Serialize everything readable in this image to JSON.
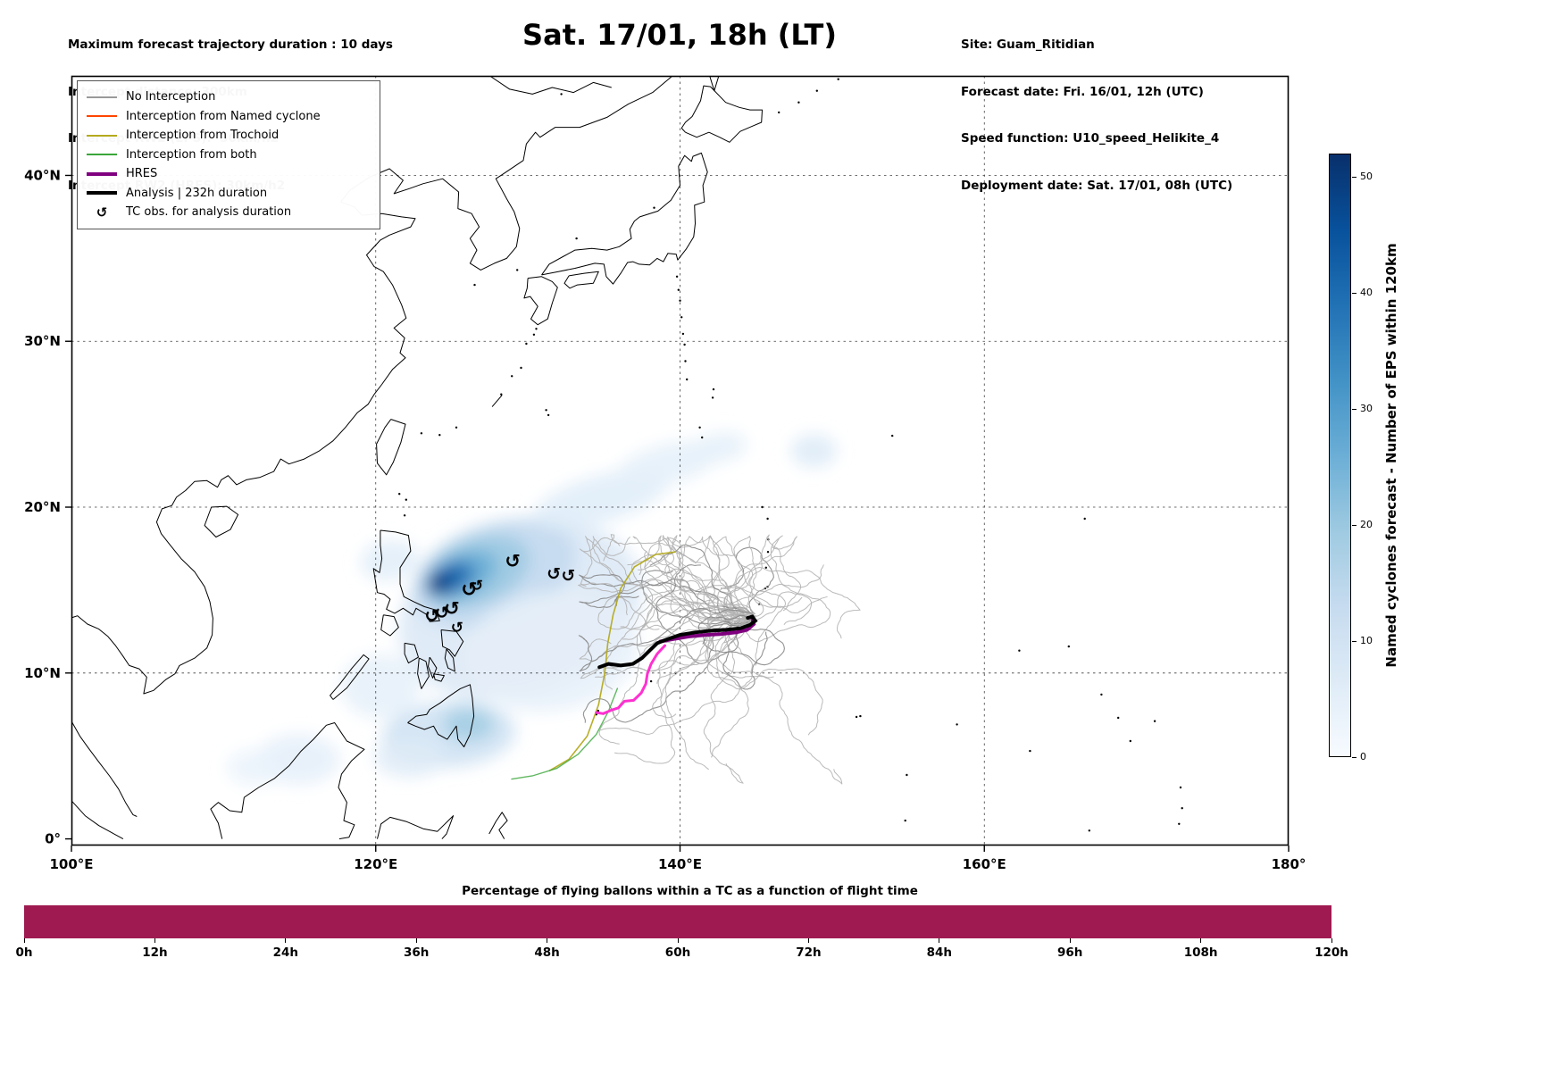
{
  "header": {
    "top_left_lines": [
      "Maximum forecast trajectory duration : 10 days",
      "Intercept distance: 300km",
      "Intercept RW2 (EPS):  30km/h2",
      "Intercept RW2 (HRES): 30km/h2"
    ],
    "title": "Sat. 17/01, 18h (LT)",
    "top_right_lines": [
      "Site: Guam_Ritidian",
      "Forecast date: Fri. 16/01, 12h (UTC)",
      "Speed function: U10_speed_Helikite_4",
      "Deployment date: Sat. 17/01, 08h (UTC)"
    ]
  },
  "legend": {
    "items": [
      {
        "label": "No Interception",
        "color": "#999999",
        "lw": 2,
        "type": "line"
      },
      {
        "label": "Interception from Named cyclone",
        "color": "#ff4500",
        "lw": 2,
        "type": "line"
      },
      {
        "label": "Interception from Trochoid",
        "color": "#b4aa1e",
        "lw": 2,
        "type": "line"
      },
      {
        "label": "Interception from both",
        "color": "#3aa63a",
        "lw": 2,
        "type": "line"
      },
      {
        "label": "HRES",
        "color": "#800080",
        "lw": 4,
        "type": "line"
      },
      {
        "label": "Analysis | 232h duration",
        "color": "#000000",
        "lw": 4,
        "type": "line"
      },
      {
        "label": "TC obs. for analysis duration",
        "color": "#000000",
        "symbol": "↺",
        "type": "symbol"
      }
    ]
  },
  "chart_data": [
    {
      "type": "heatmap",
      "title": "Sat. 17/01, 18h (LT)",
      "xlim_lon": [
        100,
        180
      ],
      "ylim_lat": [
        -0.4,
        46
      ],
      "x_ticks": [
        {
          "label": "100°E",
          "lon": 100
        },
        {
          "label": "120°E",
          "lon": 120
        },
        {
          "label": "140°E",
          "lon": 140
        },
        {
          "label": "160°E",
          "lon": 160
        },
        {
          "label": "180°",
          "lon": 180
        }
      ],
      "y_ticks": [
        {
          "label": "0°",
          "lat": 0
        },
        {
          "label": "10°N",
          "lat": 10
        },
        {
          "label": "20°N",
          "lat": 20
        },
        {
          "label": "30°N",
          "lat": 30
        },
        {
          "label": "40°N",
          "lat": 40
        }
      ],
      "grid": "dashed",
      "colorbar": {
        "label": "Named cyclones forecast - Number of EPS within 120km",
        "vmin": 0,
        "vmax": 52,
        "ticks": [
          0,
          10,
          20,
          30,
          40,
          50
        ],
        "cmap_stops": [
          "#f7fbff",
          "#deebf7",
          "#c6dbef",
          "#9ecae1",
          "#6baed6",
          "#4292c6",
          "#2171b5",
          "#08519c",
          "#08306b"
        ]
      },
      "density_peak": {
        "lon": 124.1,
        "lat": 15.4,
        "approx_value": 52
      },
      "density_blobs": [
        [
          129.5,
          13.8,
          8.2,
          5.2,
          -18,
          "#dce9f6",
          0.9
        ],
        [
          127.8,
          16.0,
          5.6,
          3.0,
          -20,
          "#c6dbef",
          0.95
        ],
        [
          126.6,
          16.1,
          3.7,
          2.0,
          -22,
          "#9ecae1",
          0.95
        ],
        [
          125.6,
          15.9,
          2.5,
          1.3,
          -24,
          "#6baed6",
          0.95
        ],
        [
          124.9,
          15.7,
          1.7,
          0.9,
          -25,
          "#2171b5",
          0.95
        ],
        [
          124.4,
          15.5,
          1.05,
          0.6,
          -25,
          "#08519c",
          1
        ],
        [
          124.05,
          15.35,
          0.6,
          0.38,
          -25,
          "#08306b",
          1
        ],
        [
          131.5,
          11.3,
          5.8,
          3.6,
          -8,
          "#e6f0f9",
          0.85
        ],
        [
          134.8,
          20.5,
          4.6,
          1.4,
          -16,
          "#e0edf8",
          0.9
        ],
        [
          139.2,
          22.6,
          3.4,
          1.2,
          -14,
          "#e6f1fa",
          0.9
        ],
        [
          142.6,
          23.6,
          1.8,
          0.9,
          -10,
          "#e6f1fa",
          0.9
        ],
        [
          148.8,
          23.4,
          1.5,
          1.0,
          0,
          "#dfecf8",
          0.95
        ],
        [
          120.9,
          16.8,
          1.9,
          1.2,
          -10,
          "#e0edf8",
          0.85
        ],
        [
          120.3,
          9.2,
          2.6,
          1.9,
          0,
          "#e4eff9",
          0.8
        ],
        [
          124.8,
          6.3,
          4.4,
          2.0,
          -4,
          "#cfe2f3",
          0.9
        ],
        [
          126.1,
          6.9,
          1.7,
          1.0,
          0,
          "#9ecae1",
          0.8
        ],
        [
          122.2,
          4.9,
          2.3,
          1.2,
          0,
          "#deebf7",
          0.85
        ],
        [
          114.9,
          4.8,
          2.7,
          1.5,
          0,
          "#e4eff9",
          0.85
        ],
        [
          112.1,
          4.3,
          1.9,
          1.1,
          0,
          "#eaf3fb",
          0.85
        ]
      ],
      "analysis_color": "#000000",
      "analysis_track_lonlat": [
        [
          134.7,
          10.35
        ],
        [
          135.3,
          10.55
        ],
        [
          136.1,
          10.45
        ],
        [
          136.9,
          10.55
        ],
        [
          137.5,
          10.9
        ],
        [
          138.0,
          11.35
        ],
        [
          138.5,
          11.8
        ],
        [
          139.2,
          12.05
        ],
        [
          140.0,
          12.3
        ],
        [
          141.0,
          12.45
        ],
        [
          142.0,
          12.55
        ],
        [
          143.0,
          12.6
        ],
        [
          144.0,
          12.7
        ],
        [
          144.6,
          12.9
        ],
        [
          144.95,
          13.15
        ],
        [
          144.75,
          13.4
        ],
        [
          144.45,
          13.32
        ]
      ],
      "hres_color": "#800080",
      "hres_track_lonlat": [
        [
          138.7,
          11.9
        ],
        [
          139.6,
          12.05
        ],
        [
          140.6,
          12.2
        ],
        [
          141.7,
          12.3
        ],
        [
          142.7,
          12.35
        ],
        [
          143.7,
          12.45
        ],
        [
          144.4,
          12.6
        ],
        [
          144.85,
          12.95
        ],
        [
          144.75,
          13.3
        ]
      ],
      "hres_south_color": "#ff30d0",
      "hres_south_branch_lonlat": [
        [
          139.0,
          11.65
        ],
        [
          138.5,
          11.15
        ],
        [
          138.1,
          10.55
        ],
        [
          137.85,
          9.95
        ],
        [
          137.75,
          9.35
        ],
        [
          137.45,
          8.8
        ],
        [
          136.95,
          8.35
        ],
        [
          136.35,
          8.3
        ],
        [
          135.95,
          7.9
        ],
        [
          135.45,
          7.75
        ],
        [
          134.95,
          7.55
        ],
        [
          134.5,
          7.62
        ]
      ],
      "trochoid_color": "#b4aa1e",
      "trochoid_interception_line_lonlat": [
        [
          139.7,
          17.3
        ],
        [
          138.4,
          17.15
        ],
        [
          137.0,
          16.4
        ],
        [
          136.1,
          15.1
        ],
        [
          135.6,
          13.5
        ],
        [
          135.25,
          11.8
        ],
        [
          135.05,
          10.0
        ],
        [
          134.65,
          8.1
        ],
        [
          133.9,
          6.2
        ],
        [
          132.7,
          4.8
        ],
        [
          131.4,
          4.1
        ]
      ],
      "both_color": "#3aa63a",
      "both_interception_line_lonlat": [
        [
          135.9,
          9.1
        ],
        [
          135.3,
          7.7
        ],
        [
          134.5,
          6.3
        ],
        [
          133.3,
          5.1
        ],
        [
          131.9,
          4.25
        ],
        [
          130.3,
          3.8
        ],
        [
          128.9,
          3.6
        ]
      ],
      "tc_obs_symbol": "↺",
      "tc_obs_lonlat": [
        [
          123.7,
          13.45,
          20
        ],
        [
          124.35,
          13.65,
          19
        ],
        [
          125.0,
          13.9,
          21
        ],
        [
          126.15,
          15.05,
          22
        ],
        [
          126.65,
          15.3,
          17
        ],
        [
          129.0,
          16.75,
          21
        ],
        [
          131.7,
          16.0,
          19
        ],
        [
          132.65,
          15.9,
          19
        ],
        [
          125.35,
          12.75,
          17
        ]
      ],
      "eps_trajectories_note": "~55 gray no-interception EPS balloon trajectories clustered 133E-152E / 3N-18N around Guam"
    },
    {
      "type": "bar",
      "title": "Percentage of flying ballons within a TC as a function of flight time",
      "x_ticks": [
        "0h",
        "12h",
        "24h",
        "36h",
        "48h",
        "60h",
        "72h",
        "84h",
        "96h",
        "108h",
        "120h"
      ],
      "xlim_hours": [
        0,
        120
      ],
      "value_percent": 100,
      "bar_color": "#9e1a50"
    }
  ]
}
